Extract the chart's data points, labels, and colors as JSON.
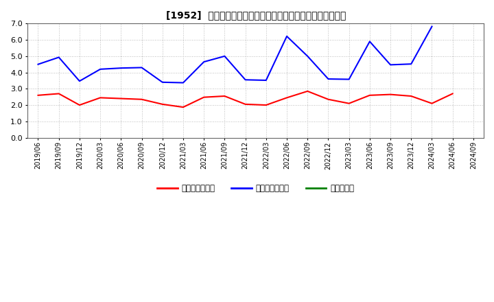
{
  "title_bracket": "[1952]",
  "title_text": "売上債権回転率、買入債務回転率、在庫回転率の推移",
  "x_labels": [
    "2019/06",
    "2019/09",
    "2019/12",
    "2020/03",
    "2020/06",
    "2020/09",
    "2020/12",
    "2021/03",
    "2021/06",
    "2021/09",
    "2021/12",
    "2022/03",
    "2022/06",
    "2022/09",
    "2022/12",
    "2023/03",
    "2023/06",
    "2023/09",
    "2023/12",
    "2024/03",
    "2024/06",
    "2024/09"
  ],
  "series": {
    "売上債権回転率": [
      2.6,
      2.7,
      2.0,
      2.45,
      2.4,
      2.35,
      2.05,
      1.87,
      2.48,
      2.55,
      2.05,
      2.0,
      2.45,
      2.85,
      2.35,
      2.1,
      2.6,
      2.65,
      2.55,
      2.1,
      2.7,
      null
    ],
    "買入債務回転率": [
      4.5,
      4.93,
      3.47,
      4.2,
      4.27,
      4.3,
      3.4,
      3.37,
      4.65,
      5.0,
      3.55,
      3.52,
      6.22,
      5.0,
      3.6,
      3.58,
      5.9,
      4.47,
      4.52,
      6.82,
      null,
      null
    ],
    "在庫回転率": [
      null,
      null,
      null,
      null,
      null,
      null,
      null,
      null,
      null,
      null,
      null,
      null,
      null,
      null,
      null,
      null,
      null,
      null,
      null,
      null,
      null,
      null
    ]
  },
  "colors": {
    "売上債権回転率": "#ff0000",
    "買入債務回転率": "#0000ff",
    "在庫回転率": "#008000"
  },
  "ylim": [
    0.0,
    7.0
  ],
  "yticks": [
    0.0,
    1.0,
    2.0,
    3.0,
    4.0,
    5.0,
    6.0,
    7.0
  ],
  "background_color": "#ffffff",
  "grid_color": "#bbbbbb"
}
